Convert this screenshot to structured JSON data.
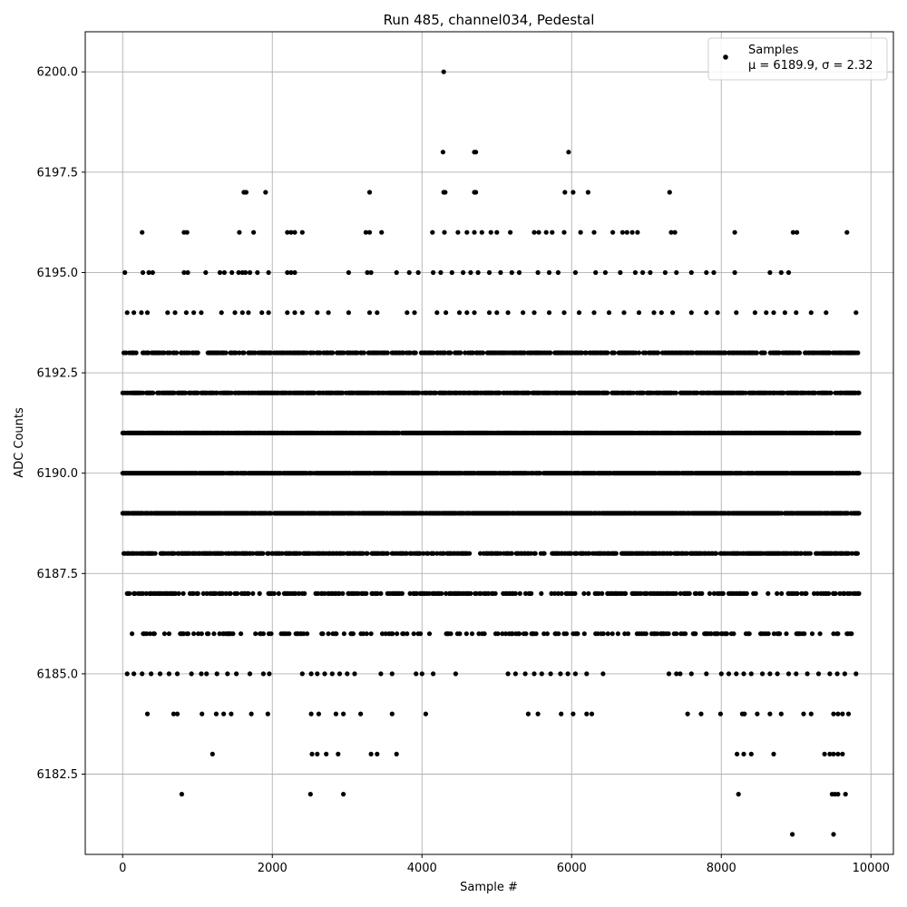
{
  "chart_data": {
    "type": "scatter",
    "title": "Run 485, channel034, Pedestal",
    "xlabel": "Sample #",
    "ylabel": "ADC Counts",
    "xlim": [
      -500,
      10300
    ],
    "ylim": [
      6180.5,
      6201.0
    ],
    "xticks": [
      0,
      2000,
      4000,
      6000,
      8000,
      10000
    ],
    "xtick_labels": [
      "0",
      "2000",
      "4000",
      "6000",
      "8000",
      "10000"
    ],
    "yticks": [
      6182.5,
      6185.0,
      6187.5,
      6190.0,
      6192.5,
      6195.0,
      6197.5,
      6200.0
    ],
    "ytick_labels": [
      "6182.5",
      "6185.0",
      "6187.5",
      "6190.0",
      "6192.5",
      "6195.0",
      "6197.5",
      "6200.0"
    ],
    "grid": true,
    "legend": {
      "placement": "top-right",
      "entries": [
        "Samples",
        "μ = 6189.9, σ = 2.32"
      ]
    },
    "marker_color": "#000000",
    "n_samples": 9850,
    "mean": 6189.9,
    "sigma": 2.32,
    "bands": [
      {
        "y": 6193,
        "runs": [
          [
            0,
            9850
          ]
        ],
        "density": 0.6
      },
      {
        "y": 6192,
        "runs": [
          [
            0,
            9850
          ]
        ],
        "density": 0.8
      },
      {
        "y": 6191,
        "runs": [
          [
            0,
            9850
          ]
        ],
        "density": 0.9
      },
      {
        "y": 6190,
        "runs": [
          [
            0,
            9850
          ]
        ],
        "density": 0.95
      },
      {
        "y": 6189,
        "runs": [
          [
            0,
            9850
          ]
        ],
        "density": 0.9
      },
      {
        "y": 6188,
        "runs": [
          [
            0,
            4650
          ],
          [
            4750,
            9850
          ]
        ],
        "density": 0.7
      },
      {
        "y": 6187,
        "runs": [
          [
            0,
            9850
          ]
        ],
        "density": 0.45
      },
      {
        "y": 6186,
        "runs": [
          [
            80,
            9850
          ]
        ],
        "density": 0.28
      }
    ],
    "points": [
      [
        4290,
        6200
      ],
      [
        4280,
        6198
      ],
      [
        4700,
        6198
      ],
      [
        4720,
        6198
      ],
      [
        5960,
        6198
      ],
      [
        1620,
        6197
      ],
      [
        1650,
        6197
      ],
      [
        1910,
        6197
      ],
      [
        3300,
        6197
      ],
      [
        4290,
        6197
      ],
      [
        4310,
        6197
      ],
      [
        4700,
        6197
      ],
      [
        4720,
        6197
      ],
      [
        5910,
        6197
      ],
      [
        6020,
        6197
      ],
      [
        6220,
        6197
      ],
      [
        7310,
        6197
      ],
      [
        260,
        6196
      ],
      [
        820,
        6196
      ],
      [
        860,
        6196
      ],
      [
        1560,
        6196
      ],
      [
        1750,
        6196
      ],
      [
        2200,
        6196
      ],
      [
        2250,
        6196
      ],
      [
        2300,
        6196
      ],
      [
        2400,
        6196
      ],
      [
        3250,
        6196
      ],
      [
        3300,
        6196
      ],
      [
        3460,
        6196
      ],
      [
        4140,
        6196
      ],
      [
        4300,
        6196
      ],
      [
        4480,
        6196
      ],
      [
        4600,
        6196
      ],
      [
        4700,
        6196
      ],
      [
        4800,
        6196
      ],
      [
        4920,
        6196
      ],
      [
        5000,
        6196
      ],
      [
        5180,
        6196
      ],
      [
        5500,
        6196
      ],
      [
        5560,
        6196
      ],
      [
        5660,
        6196
      ],
      [
        5740,
        6196
      ],
      [
        5900,
        6196
      ],
      [
        6120,
        6196
      ],
      [
        6300,
        6196
      ],
      [
        6550,
        6196
      ],
      [
        6680,
        6196
      ],
      [
        6740,
        6196
      ],
      [
        6810,
        6196
      ],
      [
        6880,
        6196
      ],
      [
        7330,
        6196
      ],
      [
        7380,
        6196
      ],
      [
        8180,
        6196
      ],
      [
        8960,
        6196
      ],
      [
        9010,
        6196
      ],
      [
        9680,
        6196
      ],
      [
        30,
        6195
      ],
      [
        270,
        6195
      ],
      [
        350,
        6195
      ],
      [
        400,
        6195
      ],
      [
        820,
        6195
      ],
      [
        870,
        6195
      ],
      [
        1110,
        6195
      ],
      [
        1300,
        6195
      ],
      [
        1360,
        6195
      ],
      [
        1460,
        6195
      ],
      [
        1550,
        6195
      ],
      [
        1600,
        6195
      ],
      [
        1640,
        6195
      ],
      [
        1700,
        6195
      ],
      [
        1800,
        6195
      ],
      [
        1950,
        6195
      ],
      [
        2200,
        6195
      ],
      [
        2250,
        6195
      ],
      [
        2300,
        6195
      ],
      [
        3020,
        6195
      ],
      [
        3270,
        6195
      ],
      [
        3320,
        6195
      ],
      [
        3660,
        6195
      ],
      [
        3830,
        6195
      ],
      [
        3950,
        6195
      ],
      [
        4150,
        6195
      ],
      [
        4250,
        6195
      ],
      [
        4400,
        6195
      ],
      [
        4550,
        6195
      ],
      [
        4650,
        6195
      ],
      [
        4750,
        6195
      ],
      [
        4900,
        6195
      ],
      [
        5050,
        6195
      ],
      [
        5200,
        6195
      ],
      [
        5300,
        6195
      ],
      [
        5550,
        6195
      ],
      [
        5700,
        6195
      ],
      [
        5820,
        6195
      ],
      [
        6050,
        6195
      ],
      [
        6320,
        6195
      ],
      [
        6450,
        6195
      ],
      [
        6650,
        6195
      ],
      [
        6850,
        6195
      ],
      [
        6950,
        6195
      ],
      [
        7050,
        6195
      ],
      [
        7250,
        6195
      ],
      [
        7400,
        6195
      ],
      [
        7600,
        6195
      ],
      [
        7800,
        6195
      ],
      [
        7900,
        6195
      ],
      [
        8180,
        6195
      ],
      [
        8650,
        6195
      ],
      [
        8800,
        6195
      ],
      [
        8900,
        6195
      ],
      [
        60,
        6194
      ],
      [
        150,
        6194
      ],
      [
        250,
        6194
      ],
      [
        330,
        6194
      ],
      [
        600,
        6194
      ],
      [
        700,
        6194
      ],
      [
        850,
        6194
      ],
      [
        950,
        6194
      ],
      [
        1050,
        6194
      ],
      [
        1320,
        6194
      ],
      [
        1500,
        6194
      ],
      [
        1600,
        6194
      ],
      [
        1680,
        6194
      ],
      [
        1860,
        6194
      ],
      [
        1950,
        6194
      ],
      [
        2200,
        6194
      ],
      [
        2300,
        6194
      ],
      [
        2400,
        6194
      ],
      [
        2600,
        6194
      ],
      [
        2750,
        6194
      ],
      [
        3020,
        6194
      ],
      [
        3300,
        6194
      ],
      [
        3400,
        6194
      ],
      [
        3800,
        6194
      ],
      [
        3900,
        6194
      ],
      [
        4200,
        6194
      ],
      [
        4320,
        6194
      ],
      [
        4500,
        6194
      ],
      [
        4600,
        6194
      ],
      [
        4700,
        6194
      ],
      [
        4900,
        6194
      ],
      [
        5000,
        6194
      ],
      [
        5150,
        6194
      ],
      [
        5350,
        6194
      ],
      [
        5500,
        6194
      ],
      [
        5700,
        6194
      ],
      [
        5900,
        6194
      ],
      [
        6100,
        6194
      ],
      [
        6300,
        6194
      ],
      [
        6500,
        6194
      ],
      [
        6700,
        6194
      ],
      [
        6900,
        6194
      ],
      [
        7100,
        6194
      ],
      [
        7200,
        6194
      ],
      [
        7350,
        6194
      ],
      [
        7600,
        6194
      ],
      [
        7800,
        6194
      ],
      [
        7950,
        6194
      ],
      [
        8200,
        6194
      ],
      [
        8450,
        6194
      ],
      [
        8600,
        6194
      ],
      [
        8700,
        6194
      ],
      [
        8850,
        6194
      ],
      [
        9000,
        6194
      ],
      [
        9200,
        6194
      ],
      [
        9400,
        6194
      ],
      [
        9800,
        6194
      ],
      [
        60,
        6185
      ],
      [
        150,
        6185
      ],
      [
        260,
        6185
      ],
      [
        380,
        6185
      ],
      [
        500,
        6185
      ],
      [
        620,
        6185
      ],
      [
        730,
        6185
      ],
      [
        920,
        6185
      ],
      [
        1050,
        6185
      ],
      [
        1120,
        6185
      ],
      [
        1260,
        6185
      ],
      [
        1400,
        6185
      ],
      [
        1520,
        6185
      ],
      [
        1700,
        6185
      ],
      [
        1880,
        6185
      ],
      [
        1960,
        6185
      ],
      [
        2400,
        6185
      ],
      [
        2520,
        6185
      ],
      [
        2600,
        6185
      ],
      [
        2700,
        6185
      ],
      [
        2800,
        6185
      ],
      [
        2900,
        6185
      ],
      [
        3000,
        6185
      ],
      [
        3100,
        6185
      ],
      [
        3450,
        6185
      ],
      [
        3600,
        6185
      ],
      [
        3920,
        6185
      ],
      [
        4000,
        6185
      ],
      [
        4150,
        6185
      ],
      [
        4450,
        6185
      ],
      [
        5150,
        6185
      ],
      [
        5250,
        6185
      ],
      [
        5380,
        6185
      ],
      [
        5500,
        6185
      ],
      [
        5600,
        6185
      ],
      [
        5720,
        6185
      ],
      [
        5850,
        6185
      ],
      [
        5950,
        6185
      ],
      [
        6050,
        6185
      ],
      [
        6200,
        6185
      ],
      [
        6420,
        6185
      ],
      [
        7300,
        6185
      ],
      [
        7400,
        6185
      ],
      [
        7450,
        6185
      ],
      [
        7600,
        6185
      ],
      [
        7800,
        6185
      ],
      [
        8000,
        6185
      ],
      [
        8100,
        6185
      ],
      [
        8200,
        6185
      ],
      [
        8300,
        6185
      ],
      [
        8400,
        6185
      ],
      [
        8550,
        6185
      ],
      [
        8650,
        6185
      ],
      [
        8750,
        6185
      ],
      [
        8900,
        6185
      ],
      [
        9000,
        6185
      ],
      [
        9150,
        6185
      ],
      [
        9300,
        6185
      ],
      [
        9450,
        6185
      ],
      [
        9550,
        6185
      ],
      [
        9650,
        6185
      ],
      [
        9800,
        6185
      ],
      [
        330,
        6184
      ],
      [
        680,
        6184
      ],
      [
        730,
        6184
      ],
      [
        1060,
        6184
      ],
      [
        1250,
        6184
      ],
      [
        1350,
        6184
      ],
      [
        1450,
        6184
      ],
      [
        1720,
        6184
      ],
      [
        1940,
        6184
      ],
      [
        2520,
        6184
      ],
      [
        2620,
        6184
      ],
      [
        2850,
        6184
      ],
      [
        2950,
        6184
      ],
      [
        3180,
        6184
      ],
      [
        3600,
        6184
      ],
      [
        4050,
        6184
      ],
      [
        5420,
        6184
      ],
      [
        5550,
        6184
      ],
      [
        5860,
        6184
      ],
      [
        6020,
        6184
      ],
      [
        6200,
        6184
      ],
      [
        6270,
        6184
      ],
      [
        7550,
        6184
      ],
      [
        7730,
        6184
      ],
      [
        7990,
        6184
      ],
      [
        8280,
        6184
      ],
      [
        8310,
        6184
      ],
      [
        8480,
        6184
      ],
      [
        8650,
        6184
      ],
      [
        8800,
        6184
      ],
      [
        9100,
        6184
      ],
      [
        9200,
        6184
      ],
      [
        9500,
        6184
      ],
      [
        9560,
        6184
      ],
      [
        9620,
        6184
      ],
      [
        9700,
        6184
      ],
      [
        1200,
        6183
      ],
      [
        2530,
        6183
      ],
      [
        2600,
        6183
      ],
      [
        2720,
        6183
      ],
      [
        2880,
        6183
      ],
      [
        3320,
        6183
      ],
      [
        3400,
        6183
      ],
      [
        3660,
        6183
      ],
      [
        8210,
        6183
      ],
      [
        8300,
        6183
      ],
      [
        8400,
        6183
      ],
      [
        8700,
        6183
      ],
      [
        9380,
        6183
      ],
      [
        9450,
        6183
      ],
      [
        9500,
        6183
      ],
      [
        9560,
        6183
      ],
      [
        9620,
        6183
      ],
      [
        790,
        6182
      ],
      [
        2510,
        6182
      ],
      [
        2950,
        6182
      ],
      [
        8230,
        6182
      ],
      [
        9480,
        6182
      ],
      [
        9520,
        6182
      ],
      [
        9560,
        6182
      ],
      [
        9660,
        6182
      ],
      [
        8950,
        6181
      ],
      [
        9500,
        6181
      ]
    ]
  }
}
